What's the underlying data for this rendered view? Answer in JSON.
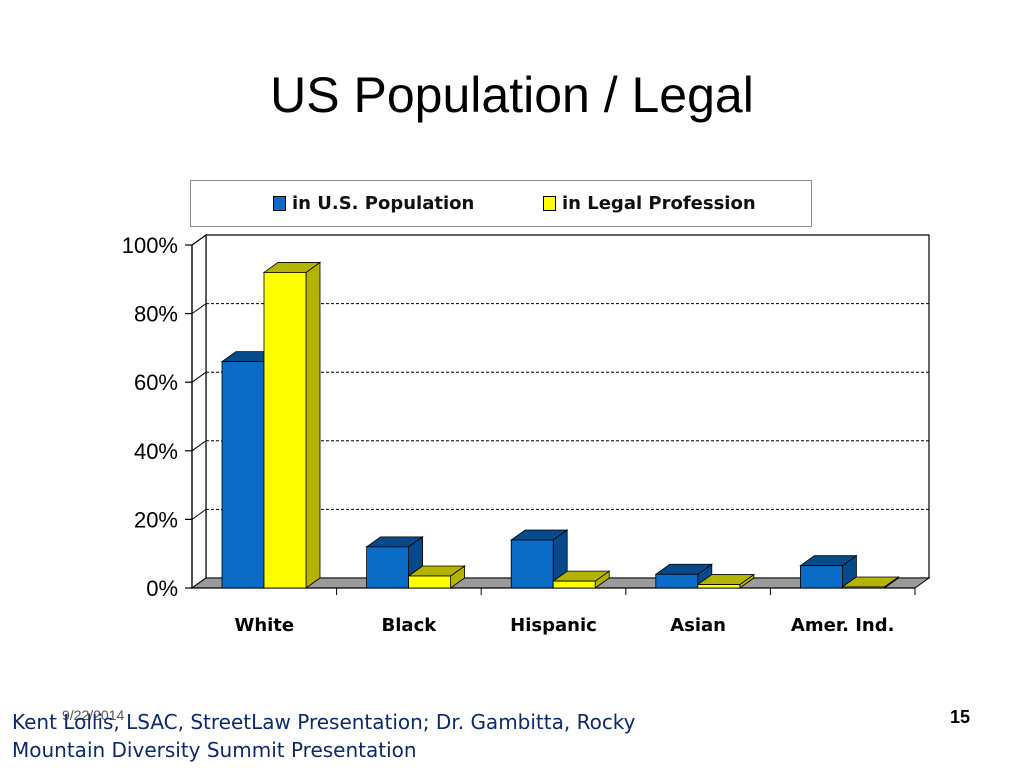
{
  "slide": {
    "title": "US Population / Legal",
    "footer_date": "9/22/2014",
    "footer_source": "Kent Lollis, LSAC, StreetLaw Presentation; Dr. Gambitta, Rocky Mountain Diversity Summit Presentation",
    "page_number": "15"
  },
  "colors": {
    "series_1": "#0a6cc6",
    "series_1_dark": "#064a8c",
    "series_2": "#ffff00",
    "series_2_dark": "#b3b300",
    "floor": "#9a9a9a"
  },
  "chart_data": {
    "type": "bar",
    "title": "",
    "xlabel": "",
    "ylabel": "",
    "categories": [
      "White",
      "Black",
      "Hispanic",
      "Asian",
      "Amer. Ind."
    ],
    "series": [
      {
        "name": "in U.S. Population",
        "values": [
          66,
          12,
          14,
          4,
          6.5
        ]
      },
      {
        "name": "in Legal Profession",
        "values": [
          92,
          3.5,
          2,
          1,
          0.3
        ]
      }
    ],
    "ylim": [
      0,
      100
    ],
    "yticks": [
      "0%",
      "20%",
      "40%",
      "60%",
      "80%",
      "100%"
    ],
    "grid": true,
    "legend_position": "top",
    "style": "3d-clustered-columns"
  }
}
